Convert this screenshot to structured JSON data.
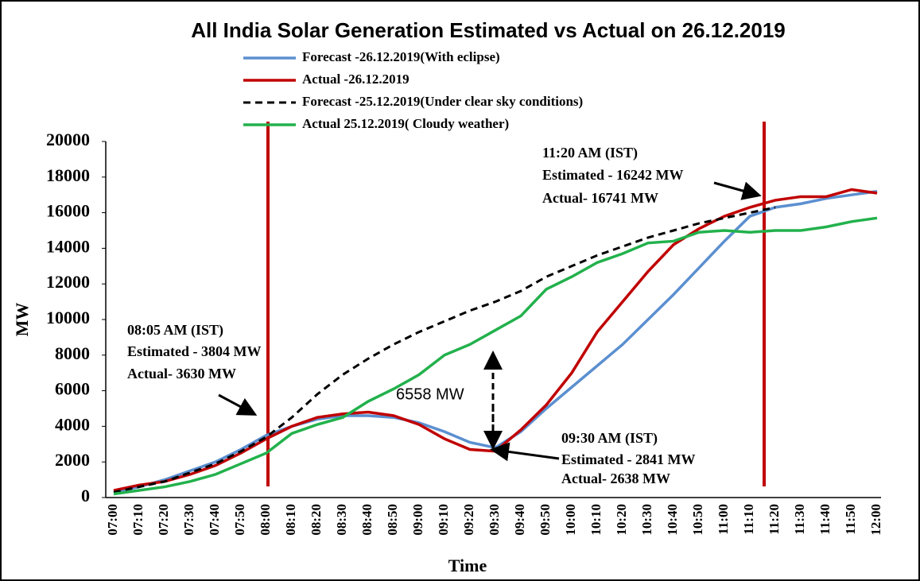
{
  "chart_data": {
    "type": "line",
    "title": "All India  Solar Generation Estimated vs Actual on 26.12.2019",
    "y_label": "MW",
    "x_label": "Time",
    "categories": [
      "07:00",
      "07:10",
      "07:20",
      "07:30",
      "07:40",
      "07:50",
      "08:00",
      "08:10",
      "08:20",
      "08:30",
      "08:40",
      "08:50",
      "09:00",
      "09:10",
      "09:20",
      "09:30",
      "09:40",
      "09:50",
      "10:00",
      "10:10",
      "10:20",
      "10:30",
      "10:40",
      "10:50",
      "11:00",
      "11:10",
      "11:20",
      "11:30",
      "11:40",
      "11:50",
      "12:00"
    ],
    "series": [
      {
        "name": "Forecast -26.12.2019(With eclipse)",
        "color": "#5b8fd0",
        "dashed": false,
        "values": [
          300,
          600,
          1000,
          1500,
          2000,
          2700,
          3500,
          4000,
          4400,
          4600,
          4600,
          4500,
          4200,
          3700,
          3100,
          2800,
          3700,
          5000,
          6200,
          7400,
          8600,
          10000,
          11400,
          12900,
          14400,
          15800,
          16300,
          16500,
          16800,
          17000,
          17200
        ]
      },
      {
        "name": "Actual -26.12.2019",
        "color": "#c00000",
        "dashed": false,
        "values": [
          400,
          700,
          900,
          1300,
          1800,
          2500,
          3300,
          4000,
          4500,
          4700,
          4800,
          4600,
          4100,
          3300,
          2700,
          2600,
          3800,
          5200,
          7000,
          9300,
          11000,
          12700,
          14200,
          15100,
          15800,
          16300,
          16700,
          16900,
          16900,
          17300,
          17100
        ]
      },
      {
        "name": "Forecast -25.12.2019(Under clear sky conditions)",
        "color": "#000000",
        "dashed": true,
        "values": [
          300,
          600,
          900,
          1400,
          1900,
          2600,
          3400,
          4500,
          5800,
          6900,
          7800,
          8600,
          9300,
          9900,
          10500,
          11000,
          11600,
          12400,
          13000,
          13600,
          14100,
          14600,
          15000,
          15400,
          15700,
          16000,
          16300,
          null,
          null,
          null,
          null
        ]
      },
      {
        "name": "Actual 25.12.2019( Cloudy weather)",
        "color": "#22b14c",
        "dashed": false,
        "values": [
          200,
          400,
          600,
          900,
          1300,
          1900,
          2500,
          3600,
          4100,
          4500,
          5400,
          6100,
          6900,
          8000,
          8600,
          9400,
          10200,
          11700,
          12400,
          13200,
          13700,
          14300,
          14400,
          14900,
          15000,
          14900,
          15000,
          15000,
          15200,
          15500,
          15700
        ]
      }
    ],
    "ylim": [
      0,
      20000
    ],
    "yticks": [
      0,
      2000,
      4000,
      6000,
      8000,
      10000,
      12000,
      14000,
      16000,
      18000,
      20000
    ],
    "annotations": [
      [
        "08:05 AM (IST)",
        "Estimated - 3804 MW",
        "Actual- 3630 MW"
      ],
      [
        "09:30 AM (IST)",
        "Estimated - 2841 MW",
        "Actual- 2638  MW"
      ],
      [
        "11:20  AM (IST)",
        "Estimated - 16242 MW",
        "Actual- 16741  MW"
      ],
      [
        "6558 MW"
      ]
    ]
  }
}
